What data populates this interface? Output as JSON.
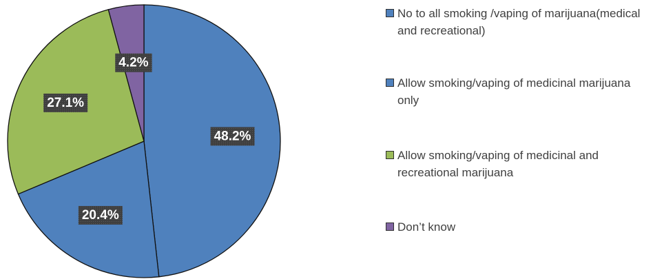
{
  "chart_data": {
    "type": "pie",
    "title": "",
    "slices": [
      {
        "label": "No to all smoking /vaping of marijuana(medical and recreational)",
        "value": 48.2,
        "display": "48.2%",
        "color": "#4f81bd"
      },
      {
        "label": "Allow smoking/vaping of medicinal marijuana only",
        "value": 20.4,
        "display": "20.4%",
        "color": "#4f81bd"
      },
      {
        "label": "Allow smoking/vaping of medicinal and recreational marijuana",
        "value": 27.1,
        "display": "27.1%",
        "color": "#9bbb59"
      },
      {
        "label": "Don’t know",
        "value": 4.2,
        "display": "4.2%",
        "color": "#8064a2"
      }
    ],
    "start_angle_deg": 0,
    "direction": "clockwise",
    "legend_position": "right",
    "data_label_style": {
      "background": "#404040",
      "color": "#ffffff"
    }
  }
}
